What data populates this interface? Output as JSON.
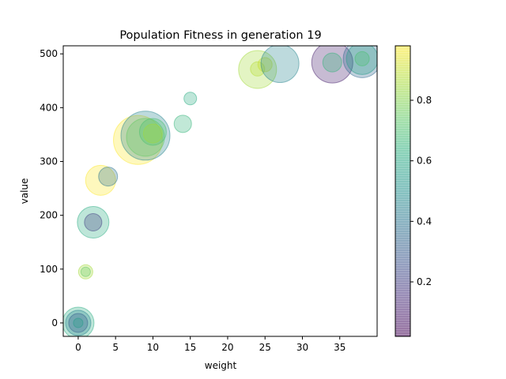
{
  "chart_data": {
    "type": "scatter",
    "title": "Population Fitness in generation 19",
    "xlabel": "weight",
    "ylabel": "value",
    "xlim": [
      -2,
      40
    ],
    "ylim": [
      -25,
      515
    ],
    "xticks": [
      0,
      5,
      10,
      15,
      20,
      25,
      30,
      35
    ],
    "yticks": [
      0,
      100,
      200,
      300,
      400,
      500
    ],
    "grid": false,
    "colorbar": {
      "colormap": "viridis",
      "range": [
        0.02,
        0.98
      ],
      "ticks": [
        0.2,
        0.4,
        0.6,
        0.8
      ]
    },
    "points": [
      {
        "x": 0,
        "y": 0,
        "c": 0.62,
        "size": 1.0
      },
      {
        "x": 0,
        "y": 0,
        "c": 0.45,
        "size": 0.8
      },
      {
        "x": 0,
        "y": 0,
        "c": 0.3,
        "size": 0.6
      },
      {
        "x": 0,
        "y": 0,
        "c": 0.55,
        "size": 0.3
      },
      {
        "x": 1,
        "y": 95,
        "c": 0.85,
        "size": 0.45
      },
      {
        "x": 1,
        "y": 95,
        "c": 0.75,
        "size": 0.3
      },
      {
        "x": 2,
        "y": 187,
        "c": 0.62,
        "size": 1.0
      },
      {
        "x": 2,
        "y": 187,
        "c": 0.2,
        "size": 0.55
      },
      {
        "x": 3,
        "y": 265,
        "c": 0.98,
        "size": 0.95
      },
      {
        "x": 4,
        "y": 272,
        "c": 0.4,
        "size": 0.6
      },
      {
        "x": 8,
        "y": 340,
        "c": 0.98,
        "size": 1.55
      },
      {
        "x": 9,
        "y": 348,
        "c": 0.45,
        "size": 1.55
      },
      {
        "x": 9,
        "y": 345,
        "c": 0.75,
        "size": 1.2
      },
      {
        "x": 10,
        "y": 355,
        "c": 0.7,
        "size": 0.85
      },
      {
        "x": 10,
        "y": 352,
        "c": 0.85,
        "size": 0.6
      },
      {
        "x": 14,
        "y": 370,
        "c": 0.65,
        "size": 0.55
      },
      {
        "x": 15,
        "y": 417,
        "c": 0.62,
        "size": 0.4
      },
      {
        "x": 24,
        "y": 471,
        "c": 0.85,
        "size": 1.2
      },
      {
        "x": 24,
        "y": 472,
        "c": 0.88,
        "size": 0.45
      },
      {
        "x": 25,
        "y": 480,
        "c": 0.9,
        "size": 0.45
      },
      {
        "x": 27,
        "y": 482,
        "c": 0.45,
        "size": 1.2
      },
      {
        "x": 34,
        "y": 484,
        "c": 0.1,
        "size": 1.3
      },
      {
        "x": 34,
        "y": 484,
        "c": 0.65,
        "size": 0.6
      },
      {
        "x": 38,
        "y": 491,
        "c": 0.35,
        "size": 1.2
      },
      {
        "x": 38,
        "y": 491,
        "c": 0.55,
        "size": 1.0
      },
      {
        "x": 38,
        "y": 491,
        "c": 0.7,
        "size": 0.45
      }
    ]
  }
}
